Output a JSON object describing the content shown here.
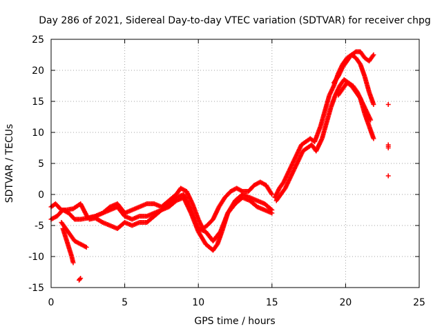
{
  "chart_data": {
    "type": "scatter",
    "title": "Day 286 of 2021, Sidereal Day-to-day VTEC variation (SDTVAR) for receiver chpg",
    "xlabel": "GPS time / hours",
    "ylabel": "SDTVAR / TECUs",
    "xlim": [
      0,
      25
    ],
    "ylim": [
      -15,
      25
    ],
    "xticks": [
      0,
      5,
      10,
      15,
      20,
      25
    ],
    "yticks": [
      -15,
      -10,
      -5,
      0,
      5,
      10,
      15,
      20,
      25
    ],
    "grid": true,
    "marker": "+",
    "color": "#ff0000",
    "series": [
      {
        "name": "track-1",
        "x": [
          0.0,
          0.3,
          0.7,
          1.0,
          1.5,
          2.0,
          2.5,
          3.0,
          3.5,
          4.0,
          4.5,
          5.0,
          5.5,
          6.0,
          6.5,
          7.0,
          7.5,
          8.0,
          8.5,
          8.8,
          9.2,
          9.6,
          10.0,
          10.3,
          10.6,
          11.0,
          11.4,
          11.8,
          12.2,
          12.6,
          13.0,
          13.4,
          13.8,
          14.2,
          14.6,
          15.0
        ],
        "y": [
          -2.0,
          -1.5,
          -2.5,
          -2.5,
          -2.3,
          -1.5,
          -3.8,
          -3.5,
          -3.0,
          -2.0,
          -1.5,
          -3.0,
          -2.5,
          -2.0,
          -1.5,
          -1.5,
          -2.0,
          -1.0,
          0.0,
          1.0,
          0.5,
          -1.5,
          -4.0,
          -5.5,
          -5.0,
          -4.0,
          -2.0,
          -0.5,
          0.5,
          1.0,
          0.5,
          0.5,
          1.5,
          2.0,
          1.5,
          0.0
        ]
      },
      {
        "name": "track-2",
        "x": [
          0.0,
          0.4,
          0.8,
          1.2,
          1.6,
          2.0,
          2.5,
          3.0,
          3.5,
          4.0,
          4.5,
          5.0,
          5.5,
          6.0,
          6.5,
          7.0,
          7.5,
          8.0,
          8.5,
          9.0,
          9.5,
          10.0,
          10.5,
          11.0,
          11.5,
          12.0,
          12.5,
          13.0,
          13.5,
          14.0,
          14.5,
          15.0
        ],
        "y": [
          -4.0,
          -3.5,
          -2.5,
          -3.0,
          -4.0,
          -4.0,
          -3.8,
          -3.5,
          -3.0,
          -2.5,
          -2.0,
          -3.5,
          -4.0,
          -3.5,
          -3.5,
          -3.0,
          -2.5,
          -1.5,
          -0.5,
          0.0,
          -2.5,
          -5.5,
          -6.0,
          -7.5,
          -6.0,
          -3.0,
          -1.0,
          0.0,
          -0.5,
          -1.0,
          -1.5,
          -2.5
        ]
      },
      {
        "name": "track-3",
        "x": [
          0.7,
          1.0,
          1.3,
          1.6,
          2.0,
          2.4,
          2.6,
          3.0,
          3.5,
          4.0,
          4.5,
          5.0,
          5.5,
          6.0,
          6.5,
          7.0,
          7.5,
          8.0,
          8.5,
          9.0,
          9.5,
          10.0,
          10.5,
          11.0,
          11.3,
          11.6,
          12.0,
          12.5,
          13.0,
          13.5,
          14.0,
          14.5,
          15.0
        ],
        "y": [
          -4.5,
          -5.5,
          -6.5,
          -7.5,
          -8.0,
          -8.5,
          -4.0,
          -3.8,
          -4.5,
          -5.0,
          -5.5,
          -4.5,
          -5.0,
          -4.5,
          -4.5,
          -3.5,
          -2.5,
          -2.0,
          -1.0,
          -0.5,
          -3.0,
          -6.0,
          -8.0,
          -9.0,
          -8.0,
          -6.0,
          -3.0,
          -1.5,
          -0.5,
          -1.0,
          -2.0,
          -2.5,
          -3.0
        ]
      },
      {
        "name": "track-4",
        "x": [
          0.8,
          1.0,
          1.2,
          1.4,
          1.5
        ],
        "y": [
          -5.5,
          -7.0,
          -8.5,
          -10.0,
          -11.0
        ]
      },
      {
        "name": "track-5",
        "x": [
          1.9,
          2.0
        ],
        "y": [
          -13.8,
          -13.5
        ]
      },
      {
        "name": "track-6",
        "x": [
          15.2,
          15.5,
          15.8,
          16.1,
          16.4,
          16.7,
          17.0,
          17.3,
          17.6,
          17.9,
          18.3,
          18.6,
          18.9,
          19.2,
          19.5,
          19.8,
          20.1,
          20.4,
          20.7,
          21.0,
          21.3,
          21.6,
          21.9
        ],
        "y": [
          -0.5,
          1.0,
          2.0,
          3.5,
          5.0,
          6.5,
          8.0,
          8.5,
          9.0,
          8.5,
          11.0,
          13.5,
          16.0,
          17.5,
          19.5,
          21.0,
          22.0,
          22.5,
          22.0,
          21.0,
          19.0,
          16.5,
          14.5
        ]
      },
      {
        "name": "track-7",
        "x": [
          15.3,
          15.6,
          15.9,
          16.2,
          16.5,
          16.8,
          17.1,
          17.4,
          17.7,
          18.0,
          18.4,
          18.7,
          19.0,
          19.3,
          19.6,
          19.9,
          20.2,
          20.5,
          20.8,
          21.1,
          21.4,
          21.7
        ],
        "y": [
          -1.0,
          0.0,
          1.0,
          2.5,
          4.0,
          5.5,
          7.0,
          7.5,
          8.0,
          7.0,
          9.0,
          11.5,
          14.0,
          16.0,
          17.5,
          18.5,
          18.0,
          17.5,
          16.5,
          15.0,
          13.5,
          12.0
        ]
      },
      {
        "name": "track-8",
        "x": [
          19.2,
          19.5,
          19.8,
          20.1,
          20.4,
          20.7,
          21.0,
          21.3,
          21.6,
          21.9
        ],
        "y": [
          18.0,
          19.0,
          20.5,
          21.5,
          22.5,
          23.0,
          23.0,
          22.0,
          21.5,
          22.5
        ]
      },
      {
        "name": "track-9",
        "x": [
          19.5,
          19.8,
          20.1,
          20.4,
          20.7,
          21.0,
          21.3,
          21.6,
          21.9
        ],
        "y": [
          16.0,
          17.0,
          18.0,
          17.5,
          16.5,
          15.5,
          13.0,
          11.0,
          9.0
        ]
      },
      {
        "name": "track-10",
        "x": [
          22.9,
          22.9,
          22.9,
          22.9
        ],
        "y": [
          14.5,
          8.0,
          7.5,
          3.0
        ]
      }
    ]
  }
}
